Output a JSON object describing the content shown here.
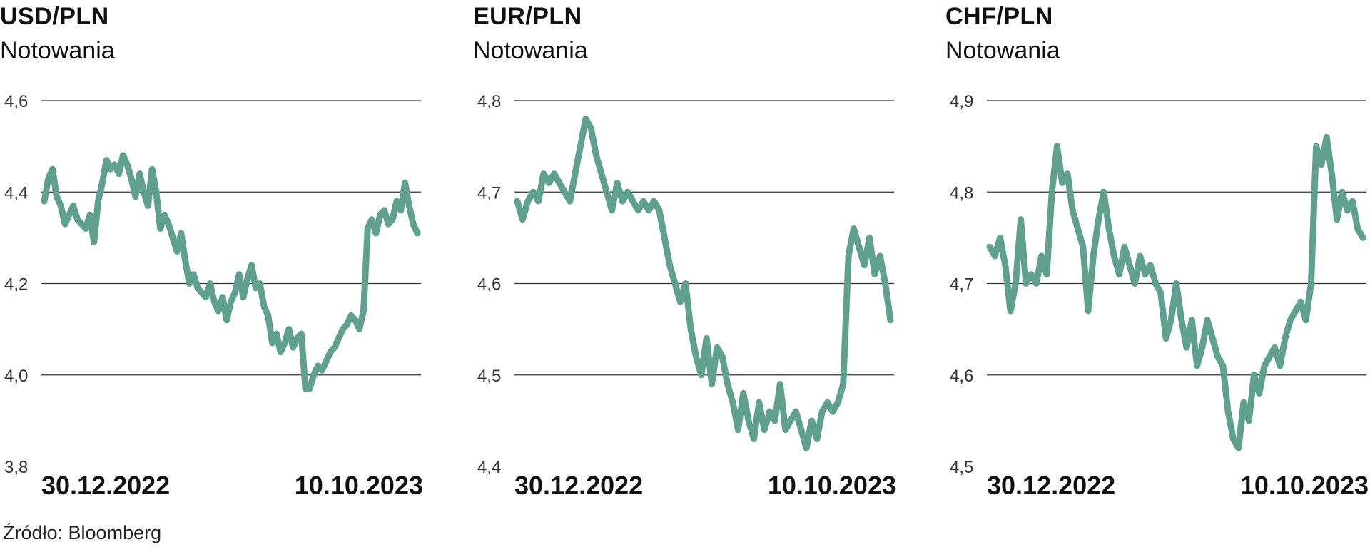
{
  "source": "Źródło: Bloomberg",
  "colors": {
    "line": "#5fa08e",
    "grid": "#333333",
    "text": "#111111"
  },
  "chart_data": [
    {
      "type": "line",
      "title": "USD/PLN",
      "subtitle": "Notowania",
      "x_labels": [
        "30.12.2022",
        "10.10.2023"
      ],
      "y_ticks": [
        "4,6",
        "4,4",
        "4,2",
        "4,0",
        "3,8"
      ],
      "ylim": [
        3.8,
        4.6
      ],
      "grid": true,
      "series": [
        {
          "values": [
            4.38,
            4.43,
            4.45,
            4.39,
            4.37,
            4.33,
            4.35,
            4.37,
            4.34,
            4.33,
            4.32,
            4.35,
            4.29,
            4.38,
            4.42,
            4.47,
            4.45,
            4.46,
            4.44,
            4.48,
            4.46,
            4.43,
            4.39,
            4.44,
            4.4,
            4.37,
            4.45,
            4.4,
            4.32,
            4.35,
            4.33,
            4.3,
            4.27,
            4.31,
            4.25,
            4.2,
            4.22,
            4.19,
            4.18,
            4.17,
            4.2,
            4.16,
            4.14,
            4.17,
            4.12,
            4.16,
            4.18,
            4.22,
            4.17,
            4.21,
            4.24,
            4.19,
            4.2,
            4.15,
            4.13,
            4.07,
            4.09,
            4.05,
            4.07,
            4.1,
            4.06,
            4.08,
            4.09,
            3.97,
            3.97,
            4.0,
            4.02,
            4.01,
            4.03,
            4.05,
            4.06,
            4.08,
            4.1,
            4.11,
            4.13,
            4.12,
            4.1,
            4.14,
            4.32,
            4.34,
            4.31,
            4.35,
            4.36,
            4.33,
            4.34,
            4.38,
            4.36,
            4.42,
            4.37,
            4.33,
            4.31
          ]
        }
      ]
    },
    {
      "type": "line",
      "title": "EUR/PLN",
      "subtitle": "Notowania",
      "x_labels": [
        "30.12.2022",
        "10.10.2023"
      ],
      "y_ticks": [
        "4,8",
        "4,7",
        "4,6",
        "4,5",
        "4,4"
      ],
      "ylim": [
        4.4,
        4.8
      ],
      "grid": true,
      "series": [
        {
          "values": [
            4.69,
            4.67,
            4.69,
            4.7,
            4.69,
            4.72,
            4.71,
            4.72,
            4.71,
            4.7,
            4.69,
            4.72,
            4.75,
            4.78,
            4.77,
            4.74,
            4.72,
            4.7,
            4.68,
            4.71,
            4.69,
            4.7,
            4.69,
            4.68,
            4.69,
            4.68,
            4.69,
            4.68,
            4.65,
            4.62,
            4.6,
            4.58,
            4.6,
            4.55,
            4.52,
            4.5,
            4.54,
            4.49,
            4.53,
            4.52,
            4.49,
            4.47,
            4.44,
            4.48,
            4.45,
            4.43,
            4.47,
            4.44,
            4.46,
            4.45,
            4.49,
            4.44,
            4.45,
            4.46,
            4.44,
            4.42,
            4.45,
            4.43,
            4.46,
            4.47,
            4.46,
            4.47,
            4.49,
            4.63,
            4.66,
            4.64,
            4.62,
            4.65,
            4.61,
            4.63,
            4.6,
            4.56
          ]
        }
      ]
    },
    {
      "type": "line",
      "title": "CHF/PLN",
      "subtitle": "Notowania",
      "x_labels": [
        "30.12.2022",
        "10.10.2023"
      ],
      "y_ticks": [
        "4,9",
        "4,8",
        "4,7",
        "4,6",
        "4,5"
      ],
      "ylim": [
        4.5,
        4.9
      ],
      "grid": true,
      "series": [
        {
          "values": [
            4.74,
            4.73,
            4.75,
            4.72,
            4.67,
            4.7,
            4.77,
            4.7,
            4.71,
            4.7,
            4.73,
            4.71,
            4.8,
            4.85,
            4.81,
            4.82,
            4.78,
            4.76,
            4.74,
            4.67,
            4.73,
            4.77,
            4.8,
            4.76,
            4.73,
            4.71,
            4.74,
            4.72,
            4.7,
            4.73,
            4.71,
            4.72,
            4.7,
            4.69,
            4.64,
            4.66,
            4.7,
            4.66,
            4.63,
            4.66,
            4.61,
            4.63,
            4.66,
            4.64,
            4.62,
            4.61,
            4.56,
            4.53,
            4.52,
            4.57,
            4.55,
            4.6,
            4.58,
            4.61,
            4.62,
            4.63,
            4.61,
            4.64,
            4.66,
            4.67,
            4.68,
            4.66,
            4.7,
            4.85,
            4.83,
            4.86,
            4.82,
            4.77,
            4.8,
            4.78,
            4.79,
            4.76,
            4.75
          ]
        }
      ]
    }
  ]
}
